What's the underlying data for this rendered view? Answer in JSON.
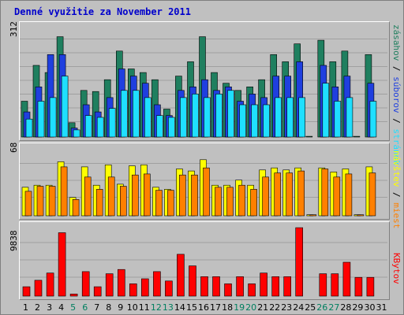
{
  "title": "Denné využitie za November 2011",
  "colors": {
    "hits": "#1f7f5f",
    "files": "#1f3fdf",
    "pages": "#1fdfff",
    "visits": "#ffff00",
    "sites": "#ff8000",
    "kbytes": "#ff0000",
    "weekend_label": "#007f5f"
  },
  "chart_data": [
    {
      "type": "bar",
      "panel": "hits-files-pages",
      "ymax_label": "312",
      "legend": [
        "zásahov",
        "súborov",
        "stránok"
      ],
      "categories": [
        "1",
        "2",
        "3",
        "4",
        "5",
        "6",
        "7",
        "8",
        "9",
        "10",
        "11",
        "12",
        "13",
        "14",
        "15",
        "16",
        "17",
        "18",
        "19",
        "20",
        "21",
        "22",
        "23",
        "24",
        "25",
        "26",
        "27",
        "28",
        "29",
        "30",
        "31"
      ],
      "weekend_days": [
        "5",
        "6",
        "12",
        "13",
        "19",
        "20",
        "26",
        "27"
      ],
      "series": [
        {
          "name": "zásahov",
          "values": [
            100,
            200,
            180,
            280,
            40,
            130,
            127,
            160,
            240,
            190,
            180,
            160,
            78,
            170,
            210,
            280,
            180,
            150,
            130,
            140,
            160,
            230,
            210,
            260,
            2,
            270,
            210,
            240,
            2,
            230,
            0
          ]
        },
        {
          "name": "súborov",
          "values": [
            70,
            140,
            230,
            230,
            25,
            90,
            70,
            110,
            190,
            170,
            150,
            90,
            60,
            130,
            140,
            160,
            130,
            140,
            100,
            120,
            110,
            170,
            170,
            210,
            0,
            200,
            140,
            170,
            0,
            150,
            0
          ]
        },
        {
          "name": "stránok",
          "values": [
            50,
            100,
            110,
            170,
            20,
            60,
            55,
            80,
            130,
            130,
            110,
            60,
            55,
            110,
            120,
            110,
            120,
            130,
            90,
            90,
            90,
            110,
            110,
            110,
            0,
            150,
            100,
            110,
            0,
            100,
            0
          ]
        }
      ],
      "ylim": [
        0,
        312
      ]
    },
    {
      "type": "bar",
      "panel": "visits-sites",
      "ymax_label": "68",
      "legend": [
        "návštev",
        "miest"
      ],
      "categories": [
        "1",
        "2",
        "3",
        "4",
        "5",
        "6",
        "7",
        "8",
        "9",
        "10",
        "11",
        "12",
        "13",
        "14",
        "15",
        "16",
        "17",
        "18",
        "19",
        "20",
        "21",
        "22",
        "23",
        "24",
        "25",
        "26",
        "27",
        "28",
        "29",
        "30",
        "31"
      ],
      "series": [
        {
          "name": "návštev",
          "values": [
            28,
            30,
            30,
            53,
            18,
            48,
            30,
            50,
            31,
            49,
            50,
            28,
            26,
            46,
            44,
            55,
            30,
            30,
            35,
            30,
            45,
            47,
            45,
            47,
            1,
            47,
            43,
            46,
            1,
            48,
            0
          ]
        },
        {
          "name": "miest",
          "values": [
            24,
            29,
            29,
            48,
            16,
            38,
            26,
            38,
            29,
            40,
            41,
            25,
            25,
            40,
            40,
            47,
            28,
            28,
            30,
            26,
            38,
            42,
            42,
            44,
            1,
            46,
            38,
            41,
            1,
            42,
            0
          ]
        }
      ],
      "ylim": [
        0,
        68
      ]
    },
    {
      "type": "bar",
      "panel": "kbytes",
      "ymax_label": "9838",
      "legend": [
        "KBytov"
      ],
      "categories": [
        "1",
        "2",
        "3",
        "4",
        "5",
        "6",
        "7",
        "8",
        "9",
        "10",
        "11",
        "12",
        "13",
        "14",
        "15",
        "16",
        "17",
        "18",
        "19",
        "20",
        "21",
        "22",
        "23",
        "24",
        "25",
        "26",
        "27",
        "28",
        "29",
        "30",
        "31"
      ],
      "series": [
        {
          "name": "KBytov",
          "values": [
            1300,
            2200,
            3200,
            8800,
            300,
            3400,
            1300,
            3100,
            3700,
            1700,
            2400,
            3400,
            2100,
            5800,
            4200,
            2700,
            2700,
            1700,
            2700,
            1700,
            3200,
            2700,
            2700,
            9500,
            0,
            3100,
            3100,
            4700,
            2600,
            2600,
            0
          ]
        }
      ],
      "ylim": [
        0,
        9838
      ]
    }
  ]
}
